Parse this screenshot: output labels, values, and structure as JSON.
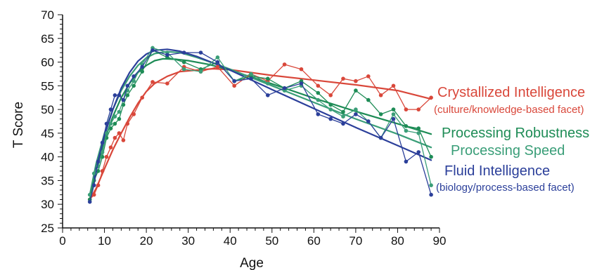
{
  "chart_data": {
    "type": "line",
    "xlabel": "Age",
    "ylabel": "T Score",
    "xlim": [
      0,
      90
    ],
    "ylim": [
      25,
      70
    ],
    "xticks": [
      0,
      10,
      20,
      30,
      40,
      50,
      60,
      70,
      80,
      90
    ],
    "yticks": [
      25,
      30,
      35,
      40,
      45,
      50,
      55,
      60,
      65,
      70
    ],
    "grid": false,
    "legend_placement": "right",
    "series": [
      {
        "key": "crystallized",
        "name": "Crystallized Intelligence",
        "subtitle": "(culture/knowledge-based facet)",
        "color": "#d9473a",
        "x": [
          6.5,
          7.5,
          8.5,
          9.5,
          10.5,
          11.5,
          12.5,
          13.5,
          14.5,
          15.5,
          17,
          19,
          21.5,
          25,
          29,
          33,
          37,
          41,
          45,
          49,
          53,
          57,
          61,
          64,
          67,
          70,
          73,
          76,
          79,
          82,
          85,
          88
        ],
        "y": [
          31,
          32,
          34,
          37,
          40,
          42,
          44,
          45,
          43.5,
          47,
          49,
          52.5,
          55.8,
          55.5,
          59,
          58,
          59,
          55,
          57.5,
          56,
          59.5,
          58.5,
          55,
          53,
          56.5,
          56,
          57,
          53,
          55,
          50,
          50,
          52.5
        ],
        "fit": [
          [
            6.5,
            31
          ],
          [
            8,
            33.3
          ],
          [
            10,
            37.5
          ],
          [
            12,
            41.5
          ],
          [
            14,
            45
          ],
          [
            16,
            48.3
          ],
          [
            18,
            51.3
          ],
          [
            20,
            53.8
          ],
          [
            22,
            55.5
          ],
          [
            25,
            57
          ],
          [
            28,
            58
          ],
          [
            32,
            58.3
          ],
          [
            36,
            58.6
          ],
          [
            40,
            58.4
          ],
          [
            50,
            57.2
          ],
          [
            60,
            56.2
          ],
          [
            70,
            55.2
          ],
          [
            80,
            54
          ],
          [
            88,
            52.2
          ]
        ]
      },
      {
        "key": "robustness",
        "name": "Processing Robustness",
        "subtitle": "",
        "color": "#1e8c56",
        "x": [
          6.5,
          7.5,
          8.5,
          9.5,
          10.5,
          11.5,
          12.5,
          13.5,
          14.5,
          15.5,
          17,
          19,
          21.5,
          25,
          29,
          33,
          37,
          41,
          45,
          49,
          53,
          57,
          61,
          64,
          67,
          70,
          73,
          76,
          79,
          82,
          85,
          88
        ],
        "y": [
          31,
          35,
          37,
          40,
          44,
          46,
          47,
          48,
          51,
          53,
          55,
          58,
          62.5,
          61,
          60,
          58.5,
          60,
          56,
          57,
          56.5,
          54.5,
          56,
          53.5,
          51,
          49.5,
          54,
          52,
          49,
          50,
          46.5,
          46,
          40
        ],
        "fit": [
          [
            6.5,
            31
          ],
          [
            8,
            37
          ],
          [
            10,
            43.5
          ],
          [
            12,
            48.5
          ],
          [
            14,
            52.5
          ],
          [
            16,
            55.5
          ],
          [
            18,
            57.8
          ],
          [
            20,
            59.3
          ],
          [
            22,
            60.3
          ],
          [
            24,
            60.7
          ],
          [
            27,
            60.6
          ],
          [
            30,
            60.3
          ],
          [
            35,
            59.5
          ],
          [
            40,
            58.3
          ],
          [
            50,
            55.4
          ],
          [
            60,
            52.4
          ],
          [
            70,
            49.6
          ],
          [
            80,
            47
          ],
          [
            88,
            44.8
          ]
        ]
      },
      {
        "key": "speed",
        "name": "Processing Speed",
        "subtitle": "",
        "color": "#3a9e78",
        "x": [
          6.5,
          7.5,
          8.5,
          9.5,
          10.5,
          11.5,
          12.5,
          13.5,
          14.5,
          15.5,
          17,
          19,
          21.5,
          25,
          29,
          33,
          37,
          41,
          45,
          49,
          53,
          57,
          61,
          64,
          67,
          70,
          73,
          76,
          79,
          82,
          85,
          88
        ],
        "y": [
          32,
          36.5,
          38,
          41,
          45,
          47,
          48.5,
          49.5,
          52,
          54,
          56,
          59.5,
          63,
          62,
          58.5,
          58,
          61,
          56,
          57.5,
          55.5,
          54,
          55,
          52,
          50,
          48.5,
          50,
          47.5,
          44,
          49,
          45.5,
          45,
          34
        ],
        "fit": [
          [
            6.5,
            32
          ],
          [
            8,
            38.5
          ],
          [
            10,
            45
          ],
          [
            12,
            50
          ],
          [
            14,
            54
          ],
          [
            16,
            57
          ],
          [
            18,
            59.3
          ],
          [
            20,
            60.9
          ],
          [
            22,
            61.8
          ],
          [
            25,
            62.2
          ],
          [
            28,
            62
          ],
          [
            32,
            61
          ],
          [
            36,
            59.8
          ],
          [
            40,
            58.5
          ],
          [
            50,
            55
          ],
          [
            60,
            51.5
          ],
          [
            70,
            48
          ],
          [
            80,
            44.8
          ],
          [
            88,
            42
          ]
        ]
      },
      {
        "key": "fluid",
        "name": "Fluid Intelligence",
        "subtitle": "(biology/process-based facet)",
        "color": "#2b3f9a",
        "x": [
          6.5,
          7.5,
          8.5,
          9.5,
          10.5,
          11.5,
          12.5,
          13.5,
          14.5,
          15.5,
          17,
          19,
          21.5,
          25,
          29,
          33,
          37,
          41,
          45,
          49,
          53,
          57,
          61,
          64,
          67,
          70,
          73,
          76,
          79,
          82,
          85,
          88
        ],
        "y": [
          30.5,
          34,
          39,
          43,
          47,
          50,
          53,
          53,
          52,
          55,
          57,
          59,
          62.5,
          61.5,
          62,
          62,
          60,
          56,
          56.5,
          53,
          54.5,
          55.5,
          49,
          48,
          47,
          49,
          47.5,
          44,
          48,
          39,
          41,
          32
        ],
        "fit": [
          [
            6.5,
            30.5
          ],
          [
            8,
            37.5
          ],
          [
            10,
            44.5
          ],
          [
            12,
            50
          ],
          [
            14,
            54.5
          ],
          [
            16,
            57.8
          ],
          [
            18,
            60.2
          ],
          [
            20,
            61.7
          ],
          [
            22,
            62.5
          ],
          [
            25,
            62.7
          ],
          [
            28,
            62.3
          ],
          [
            32,
            61.2
          ],
          [
            36,
            59.8
          ],
          [
            40,
            58.3
          ],
          [
            50,
            54.2
          ],
          [
            60,
            50.2
          ],
          [
            70,
            46.2
          ],
          [
            80,
            42.4
          ],
          [
            88,
            39.3
          ]
        ]
      }
    ]
  }
}
